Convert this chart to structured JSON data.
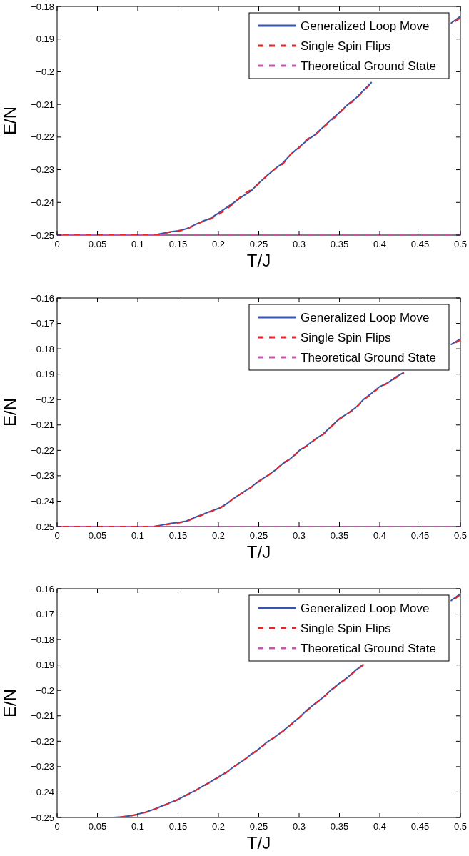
{
  "chart_data": [
    {
      "type": "line",
      "xlabel": "T/J",
      "ylabel": "E/N",
      "xlim": [
        0,
        0.5
      ],
      "xticks": [
        0,
        0.05,
        0.1,
        0.15,
        0.2,
        0.25,
        0.3,
        0.35,
        0.4,
        0.45,
        0.5
      ],
      "ylim": [
        -0.25,
        -0.18
      ],
      "yticks": [
        {
          "value": -0.25,
          "label": "−0.25"
        },
        {
          "value": -0.24,
          "label": "−0.24"
        },
        {
          "value": -0.23,
          "label": "−0.23"
        },
        {
          "value": -0.22,
          "label": "−0.22"
        },
        {
          "value": -0.21,
          "label": "−0.21"
        },
        {
          "value": -0.2,
          "label": "−0.2"
        },
        {
          "value": -0.19,
          "label": "−0.19"
        },
        {
          "value": -0.18,
          "label": "−0.18"
        }
      ],
      "legend": "top right",
      "series": [
        {
          "name": "Generalized Loop Move",
          "color": "#3a55a6",
          "line_style": "solid",
          "x": [
            0,
            0.1,
            0.12,
            0.13,
            0.14,
            0.15,
            0.16,
            0.17,
            0.18,
            0.19,
            0.2,
            0.21,
            0.22,
            0.23,
            0.24,
            0.25,
            0.26,
            0.27,
            0.28,
            0.29,
            0.3,
            0.31,
            0.32,
            0.33,
            0.34,
            0.35,
            0.36,
            0.37,
            0.38,
            0.39,
            0.45,
            0.488,
            0.5
          ],
          "values": [
            -0.25,
            -0.25,
            -0.25,
            -0.2495,
            -0.249,
            -0.2487,
            -0.2481,
            -0.2469,
            -0.2458,
            -0.2449,
            -0.2433,
            -0.2416,
            -0.2399,
            -0.2381,
            -0.2366,
            -0.2341,
            -0.2319,
            -0.2297,
            -0.2279,
            -0.2252,
            -0.2231,
            -0.221,
            -0.2192,
            -0.2169,
            -0.2146,
            -0.2125,
            -0.2101,
            -0.2082,
            -0.2057,
            -0.2032,
            null,
            -0.1852,
            -0.183
          ]
        },
        {
          "name": "Single Spin Flips",
          "color": "#e8262a",
          "line_style": "dashed",
          "x": [
            0,
            0.1,
            0.12,
            0.13,
            0.14,
            0.15,
            0.16,
            0.17,
            0.18,
            0.19,
            0.2,
            0.21,
            0.22,
            0.23,
            0.24,
            0.25,
            0.26,
            0.27,
            0.28,
            0.29,
            0.3,
            0.31,
            0.32,
            0.33,
            0.34,
            0.35,
            0.36,
            0.37,
            0.38,
            0.39,
            0.45,
            0.488,
            0.5
          ],
          "values": [
            -0.25,
            -0.25,
            -0.25,
            -0.2496,
            -0.2491,
            -0.2488,
            -0.2483,
            -0.2471,
            -0.2459,
            -0.2451,
            -0.2437,
            -0.2421,
            -0.2401,
            -0.2376,
            -0.2362,
            -0.2343,
            -0.2318,
            -0.2298,
            -0.2282,
            -0.2252,
            -0.2233,
            -0.2206,
            -0.2194,
            -0.2171,
            -0.2149,
            -0.2127,
            -0.2102,
            -0.2085,
            -0.2059,
            -0.2034,
            null,
            -0.1856,
            -0.1835
          ]
        },
        {
          "name": "Theoretical Ground State",
          "color": "#c05ab0",
          "line_style": "dashed",
          "x": [
            0,
            0.5
          ],
          "values": [
            -0.25,
            -0.25
          ]
        }
      ]
    },
    {
      "type": "line",
      "xlabel": "T/J",
      "ylabel": "E/N",
      "xlim": [
        0,
        0.5
      ],
      "xticks": [
        0,
        0.05,
        0.1,
        0.15,
        0.2,
        0.25,
        0.3,
        0.35,
        0.4,
        0.45,
        0.5
      ],
      "ylim": [
        -0.25,
        -0.16
      ],
      "yticks": [
        {
          "value": -0.25,
          "label": "−0.25"
        },
        {
          "value": -0.24,
          "label": "−0.24"
        },
        {
          "value": -0.23,
          "label": "−0.23"
        },
        {
          "value": -0.22,
          "label": "−0.22"
        },
        {
          "value": -0.21,
          "label": "−0.21"
        },
        {
          "value": -0.2,
          "label": "−0.2"
        },
        {
          "value": -0.19,
          "label": "−0.19"
        },
        {
          "value": -0.18,
          "label": "−0.18"
        },
        {
          "value": -0.17,
          "label": "−0.17"
        },
        {
          "value": -0.16,
          "label": "−0.16"
        }
      ],
      "legend": "top right",
      "series": [
        {
          "name": "Generalized Loop Move",
          "color": "#3a55a6",
          "line_style": "solid",
          "x": [
            0,
            0.1,
            0.12,
            0.13,
            0.14,
            0.15,
            0.16,
            0.17,
            0.18,
            0.19,
            0.2,
            0.21,
            0.22,
            0.23,
            0.24,
            0.25,
            0.26,
            0.27,
            0.28,
            0.29,
            0.3,
            0.31,
            0.32,
            0.33,
            0.34,
            0.35,
            0.36,
            0.37,
            0.38,
            0.39,
            0.4,
            0.41,
            0.42,
            0.43,
            0.46,
            0.488,
            0.5
          ],
          "values": [
            -0.25,
            -0.25,
            -0.25,
            -0.2494,
            -0.2488,
            -0.2484,
            -0.2479,
            -0.2465,
            -0.2453,
            -0.244,
            -0.2429,
            -0.2411,
            -0.2387,
            -0.2366,
            -0.2346,
            -0.2321,
            -0.2301,
            -0.2279,
            -0.2252,
            -0.2231,
            -0.2201,
            -0.218,
            -0.2156,
            -0.2135,
            -0.2105,
            -0.2075,
            -0.2055,
            -0.2032,
            -0.1999,
            -0.1975,
            -0.1949,
            -0.1934,
            -0.1911,
            -0.1893,
            null,
            -0.1784,
            -0.1761
          ]
        },
        {
          "name": "Single Spin Flips",
          "color": "#e8262a",
          "line_style": "dashed",
          "x": [
            0,
            0.1,
            0.12,
            0.13,
            0.14,
            0.15,
            0.16,
            0.17,
            0.18,
            0.19,
            0.2,
            0.21,
            0.22,
            0.23,
            0.24,
            0.25,
            0.26,
            0.27,
            0.28,
            0.29,
            0.3,
            0.31,
            0.32,
            0.33,
            0.34,
            0.35,
            0.36,
            0.37,
            0.38,
            0.39,
            0.4,
            0.41,
            0.42,
            0.43,
            0.46,
            0.488,
            0.5
          ],
          "values": [
            -0.25,
            -0.25,
            -0.25,
            -0.2495,
            -0.249,
            -0.2486,
            -0.2481,
            -0.2467,
            -0.2455,
            -0.2441,
            -0.2431,
            -0.2412,
            -0.2385,
            -0.2368,
            -0.2347,
            -0.2323,
            -0.2302,
            -0.2281,
            -0.2249,
            -0.2233,
            -0.2203,
            -0.2182,
            -0.2157,
            -0.2137,
            -0.2107,
            -0.2077,
            -0.2056,
            -0.2035,
            -0.2001,
            -0.1978,
            -0.1951,
            -0.1936,
            -0.1914,
            -0.1895,
            null,
            -0.1788,
            -0.1765
          ]
        },
        {
          "name": "Theoretical Ground State",
          "color": "#c05ab0",
          "line_style": "dashed",
          "x": [
            0,
            0.5
          ],
          "values": [
            -0.25,
            -0.25
          ]
        }
      ]
    },
    {
      "type": "line",
      "xlabel": "T/J",
      "ylabel": "E/N",
      "xlim": [
        0,
        0.5
      ],
      "xticks": [
        0,
        0.05,
        0.1,
        0.15,
        0.2,
        0.25,
        0.3,
        0.35,
        0.4,
        0.45,
        0.5
      ],
      "ylim": [
        -0.25,
        -0.16
      ],
      "yticks": [
        {
          "value": -0.25,
          "label": "−0.25"
        },
        {
          "value": -0.24,
          "label": "−0.24"
        },
        {
          "value": -0.23,
          "label": "−0.23"
        },
        {
          "value": -0.22,
          "label": "−0.22"
        },
        {
          "value": -0.21,
          "label": "−0.21"
        },
        {
          "value": -0.2,
          "label": "−0.2"
        },
        {
          "value": -0.19,
          "label": "−0.19"
        },
        {
          "value": -0.18,
          "label": "−0.18"
        },
        {
          "value": -0.17,
          "label": "−0.17"
        },
        {
          "value": -0.16,
          "label": "−0.16"
        }
      ],
      "legend": "top right",
      "series": [
        {
          "name": "Generalized Loop Move",
          "color": "#3a55a6",
          "line_style": "solid",
          "x": [
            0,
            0.07,
            0.08,
            0.09,
            0.1,
            0.11,
            0.12,
            0.13,
            0.14,
            0.15,
            0.16,
            0.17,
            0.18,
            0.19,
            0.2,
            0.21,
            0.22,
            0.23,
            0.24,
            0.25,
            0.26,
            0.27,
            0.28,
            0.29,
            0.3,
            0.31,
            0.32,
            0.33,
            0.34,
            0.35,
            0.36,
            0.37,
            0.38,
            0.44,
            0.488,
            0.5
          ],
          "values": [
            -0.25,
            -0.25,
            -0.2498,
            -0.2494,
            -0.2487,
            -0.2479,
            -0.2468,
            -0.2455,
            -0.2442,
            -0.2429,
            -0.2412,
            -0.2396,
            -0.2378,
            -0.236,
            -0.2341,
            -0.2322,
            -0.2298,
            -0.2277,
            -0.2253,
            -0.2231,
            -0.2204,
            -0.2183,
            -0.216,
            -0.2133,
            -0.2107,
            -0.2077,
            -0.2051,
            -0.2027,
            -0.1997,
            -0.1972,
            -0.1949,
            -0.1921,
            -0.1897,
            null,
            -0.1648,
            -0.162
          ]
        },
        {
          "name": "Single Spin Flips",
          "color": "#e8262a",
          "line_style": "dashed",
          "x": [
            0,
            0.07,
            0.08,
            0.09,
            0.1,
            0.11,
            0.12,
            0.13,
            0.14,
            0.15,
            0.16,
            0.17,
            0.18,
            0.19,
            0.2,
            0.21,
            0.22,
            0.23,
            0.24,
            0.25,
            0.26,
            0.27,
            0.28,
            0.29,
            0.3,
            0.31,
            0.32,
            0.33,
            0.34,
            0.35,
            0.36,
            0.37,
            0.38,
            0.44,
            0.488,
            0.5
          ],
          "values": [
            -0.25,
            -0.25,
            -0.2498,
            -0.2495,
            -0.2488,
            -0.248,
            -0.2469,
            -0.2456,
            -0.2443,
            -0.243,
            -0.2413,
            -0.2397,
            -0.2379,
            -0.2361,
            -0.2342,
            -0.2323,
            -0.2299,
            -0.2278,
            -0.2254,
            -0.2232,
            -0.2206,
            -0.2184,
            -0.2161,
            -0.2135,
            -0.2108,
            -0.2079,
            -0.2052,
            -0.2028,
            -0.1999,
            -0.1974,
            -0.1951,
            -0.1923,
            -0.1899,
            null,
            -0.1652,
            -0.1623
          ]
        },
        {
          "name": "Theoretical Ground State",
          "color": "#c05ab0",
          "line_style": "dashed",
          "x": [
            0,
            0.5
          ],
          "values": [
            -0.25,
            -0.25
          ]
        }
      ]
    }
  ]
}
